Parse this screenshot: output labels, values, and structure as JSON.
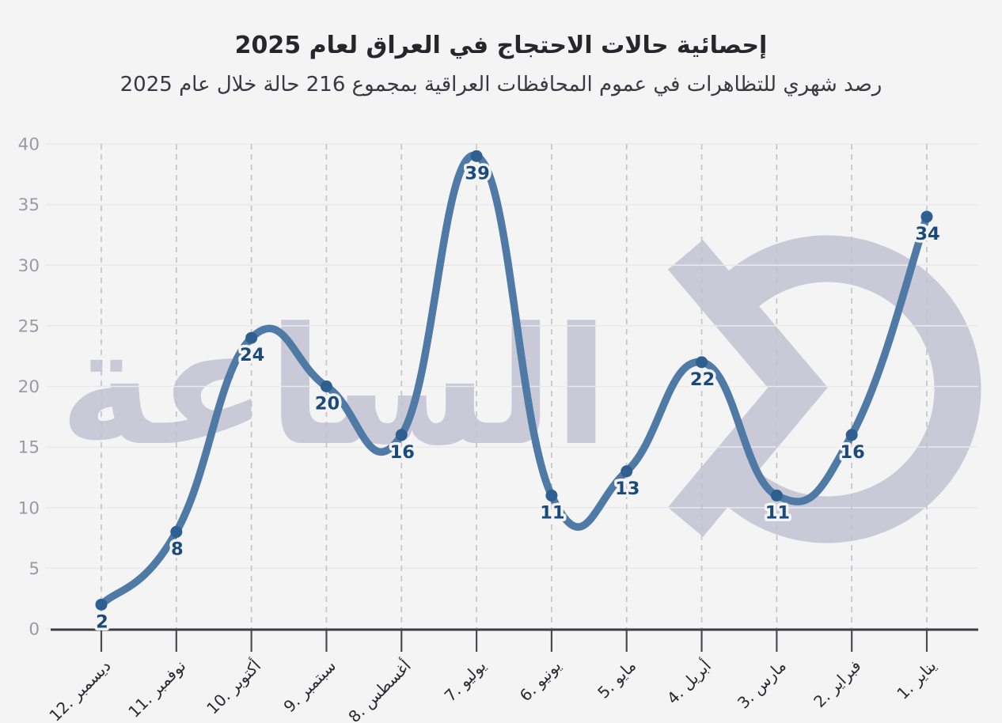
{
  "watermark": {
    "text": "الساعة",
    "logo": "broken-circle-arrow"
  },
  "colors": {
    "background": "#f4f4f5",
    "title": "#26262b",
    "subtitle": "#38383f",
    "line": "#4e7aa5",
    "point": "#2e5f90",
    "point_label": "#1b4a7a",
    "label_halo": "#f4f4f5",
    "grid": "#e9e9ec",
    "grid_dash": "#c2c2c9",
    "axis": "#3e3e43",
    "tick": "#4b4b50",
    "y_tick_label": "#9a9aa2",
    "x_tick_label": "#2a2a2e",
    "watermark": "#c9c9d8"
  },
  "chart_data": {
    "type": "line",
    "title": "إحصائية حالات الاحتجاج في العراق لعام 2025",
    "subtitle": "رصد شهري للتظاهرات في عموم المحافظات العراقية بمجموع 216 حالة خلال عام 2025",
    "categories": [
      "12. ديسمبر",
      "11. نوفمبر",
      "10. أكتوبر",
      "9. سبتمبر",
      "8. أغسطس",
      "7. يوليو",
      "6. يونيو",
      "5. مايو",
      "4. أبريل",
      "3. مارس",
      "2. فبراير",
      "1. يناير"
    ],
    "values": [
      2,
      8,
      24,
      20,
      16,
      39,
      11,
      13,
      22,
      11,
      16,
      34
    ],
    "total": 216,
    "xlabel": "",
    "ylabel": "",
    "ylim": [
      0,
      40
    ],
    "y_ticks": [
      0,
      5,
      10,
      15,
      20,
      25,
      30,
      35,
      40
    ],
    "grid": true,
    "curve": "smooth",
    "direction": "rtl",
    "legend": "none"
  }
}
